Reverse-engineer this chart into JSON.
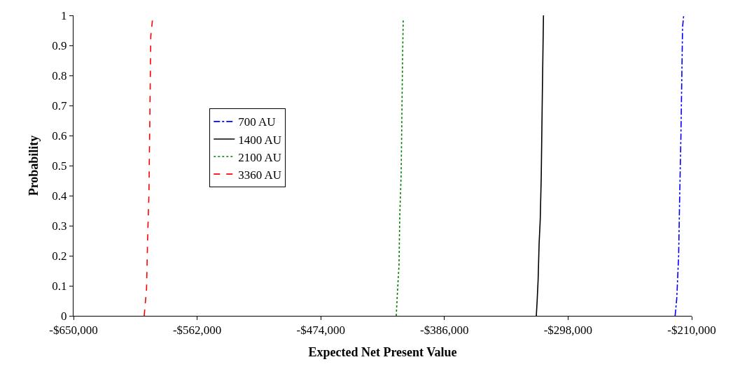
{
  "chart_data": {
    "type": "line",
    "xlabel": "Expected Net Present Value",
    "ylabel": "Probability",
    "series": [
      {
        "name": "700 AU",
        "color": "#0000ff",
        "line_style": "dashdot",
        "x": [
          -221800,
          -220600,
          -219300,
          -218500,
          -217700,
          -216500,
          -215700
        ],
        "values": [
          0,
          0.06,
          0.2,
          0.41,
          0.59,
          0.96,
          1.0
        ]
      },
      {
        "name": "1400 AU",
        "color": "#000000",
        "line_style": "solid",
        "x": [
          -320600,
          -320000,
          -319300,
          -318600,
          -317800,
          -317100,
          -316300,
          -315500
        ],
        "values": [
          0,
          0.05,
          0.12,
          0.24,
          0.32,
          0.46,
          0.74,
          1.0
        ]
      },
      {
        "name": "2100 AU",
        "color": "#008000",
        "line_style": "dotted",
        "x": [
          -420300,
          -419300,
          -418300,
          -417800,
          -416800,
          -415800,
          -415300
        ],
        "values": [
          0,
          0.09,
          0.17,
          0.33,
          0.47,
          0.85,
          0.99
        ]
      },
      {
        "name": "3360 AU",
        "color": "#ff0000",
        "line_style": "dashed",
        "x": [
          -599700,
          -598000,
          -597300,
          -596300,
          -595000,
          -593700
        ],
        "values": [
          0,
          0.09,
          0.25,
          0.41,
          0.93,
          0.99
        ]
      }
    ],
    "xlim": [
      -650000,
      -210000
    ],
    "xticks": [
      {
        "value": -650000,
        "label": "-$650,000"
      },
      {
        "value": -562000,
        "label": "-$562,000"
      },
      {
        "value": -474000,
        "label": "-$474,000"
      },
      {
        "value": -386000,
        "label": "-$386,000"
      },
      {
        "value": -298000,
        "label": "-$298,000"
      },
      {
        "value": -210000,
        "label": "-$210,000"
      }
    ],
    "ylim": [
      0,
      1
    ],
    "yticks": [
      0,
      0.1,
      0.2,
      0.3,
      0.4,
      0.5,
      0.6,
      0.7,
      0.8,
      0.9,
      1
    ],
    "grid": false,
    "legend": "left",
    "marker": "none"
  }
}
